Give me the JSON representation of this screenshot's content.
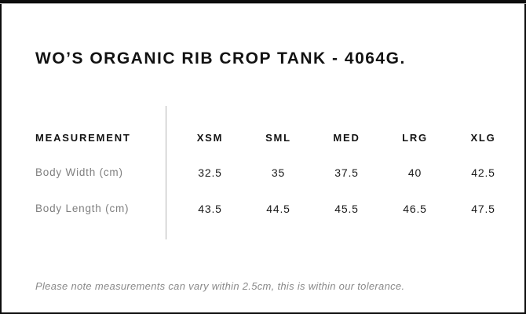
{
  "title": "WO’S ORGANIC RIB CROP TANK - 4064G.",
  "table": {
    "header": [
      "MEASUREMENT",
      "XSM",
      "SML",
      "MED",
      "LRG",
      "XLG"
    ],
    "rows": [
      {
        "label": "Body Width (cm)",
        "values": [
          "32.5",
          "35",
          "37.5",
          "40",
          "42.5"
        ]
      },
      {
        "label": "Body Length (cm)",
        "values": [
          "43.5",
          "44.5",
          "45.5",
          "46.5",
          "47.5"
        ]
      }
    ]
  },
  "note": "Please note measurements can vary within 2.5cm, this is within our tolerance.",
  "colors": {
    "frame_border": "#0d0d0d",
    "heading_text": "#121212",
    "row_label_text": "#7f7f7f",
    "value_text": "#1a1a1a",
    "divider": "#b4b4b4",
    "note_text": "#8a8a8a",
    "background": "#ffffff"
  }
}
